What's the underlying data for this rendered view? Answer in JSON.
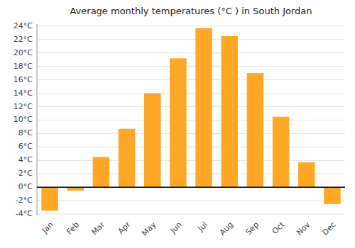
{
  "chart_data": {
    "type": "bar",
    "title": "Average monthly temperatures (°C ) in South Jordan",
    "categories": [
      "Jan",
      "Feb",
      "Mar",
      "Apr",
      "May",
      "Jun",
      "Jul",
      "Aug",
      "Sep",
      "Oct",
      "Nov",
      "Dec"
    ],
    "values": [
      -3.5,
      -0.5,
      4.5,
      8.7,
      14.0,
      19.2,
      23.7,
      22.5,
      17.0,
      10.5,
      3.7,
      -2.5
    ],
    "color": "#FFA726",
    "ylim": [
      -4.2,
      24.3
    ],
    "yticks": [
      {
        "value": -4,
        "label": "-4°C"
      },
      {
        "value": -2,
        "label": "-2°C"
      },
      {
        "value": 0,
        "label": "0°C"
      },
      {
        "value": 2,
        "label": "2°C"
      },
      {
        "value": 4,
        "label": "4°C"
      },
      {
        "value": 6,
        "label": "6°C"
      },
      {
        "value": 8,
        "label": "8°C"
      },
      {
        "value": 10,
        "label": "10°C"
      },
      {
        "value": 12,
        "label": "12°C"
      },
      {
        "value": 14,
        "label": "14°C"
      },
      {
        "value": 16,
        "label": "16°C"
      },
      {
        "value": 18,
        "label": "18°C"
      },
      {
        "value": 20,
        "label": "20°C"
      },
      {
        "value": 22,
        "label": "22°C"
      },
      {
        "value": 24,
        "label": "24°C"
      }
    ],
    "grid": true
  }
}
